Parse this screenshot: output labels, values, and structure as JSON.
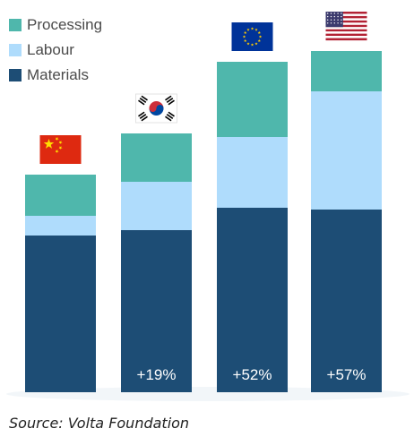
{
  "chart_data": {
    "type": "bar",
    "stacked": true,
    "categories": [
      "China",
      "South Korea",
      "EU",
      "USA"
    ],
    "series": [
      {
        "name": "Materials",
        "color": "#1d4d75",
        "values": [
          175,
          181,
          206,
          204
        ]
      },
      {
        "name": "Labour",
        "color": "#afdcfc",
        "values": [
          22,
          54,
          79,
          132
        ]
      },
      {
        "name": "Processing",
        "color": "#4fb7ac",
        "values": [
          46,
          54,
          84,
          45
        ]
      }
    ],
    "bar_labels": [
      "",
      "+19%",
      "+52%",
      "+57%"
    ],
    "legend_order": [
      "Processing",
      "Labour",
      "Materials"
    ],
    "legend_position": "top-left",
    "flag_icons": [
      "china-flag-icon",
      "south-korea-flag-icon",
      "eu-flag-icon",
      "usa-flag-icon"
    ],
    "grid": false,
    "axes_visible": false,
    "ylim": [
      0,
      380
    ]
  },
  "source": "Source: Volta Foundation"
}
